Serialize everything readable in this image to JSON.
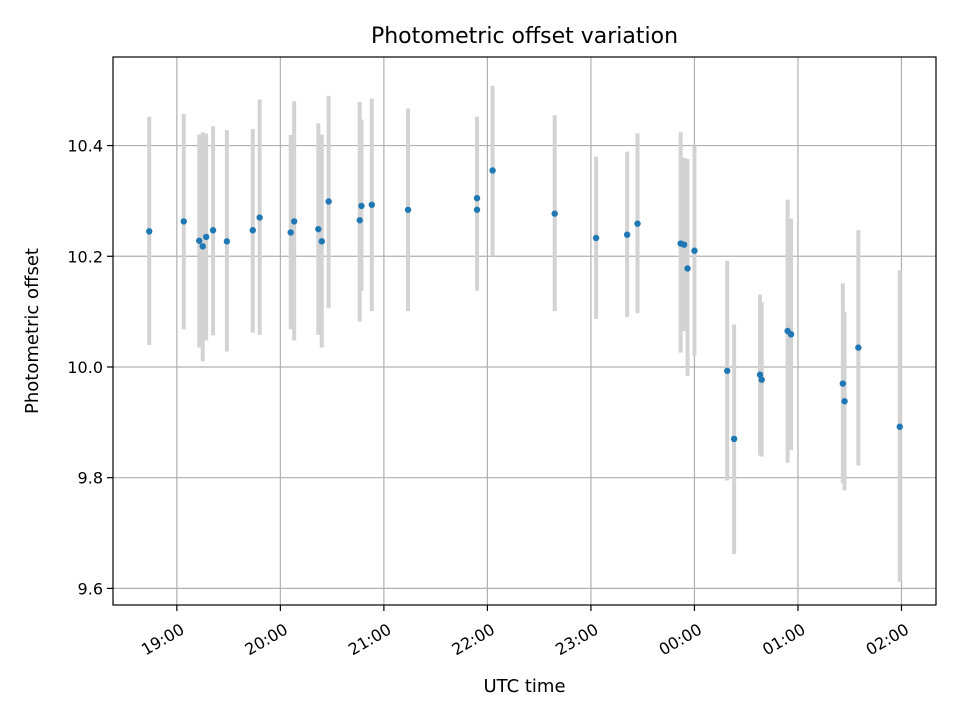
{
  "chart_data": {
    "type": "scatter",
    "title": "Photometric offset variation",
    "xlabel": "UTC time",
    "ylabel": "Photometric offset",
    "ylim": [
      9.57,
      10.56
    ],
    "xlim": [
      "18:23",
      "02:20"
    ],
    "x_axis_note": "times after midnight belong to the following day",
    "grid": true,
    "xticks": [
      "19:00",
      "20:00",
      "21:00",
      "22:00",
      "23:00",
      "00:00",
      "01:00",
      "02:00"
    ],
    "yticks": [
      9.6,
      9.8,
      10.0,
      10.2,
      10.4
    ],
    "ytick_labels": [
      "9.6",
      "9.8",
      "10.0",
      "10.2",
      "10.4"
    ],
    "point_color": "#1f77b4",
    "errorbar_color": "#d3d3d3",
    "points": [
      {
        "t": "18:44",
        "y": 10.245,
        "lo": 10.04,
        "hi": 10.452
      },
      {
        "t": "19:04",
        "y": 10.263,
        "lo": 10.068,
        "hi": 10.457
      },
      {
        "t": "19:13",
        "y": 10.228,
        "lo": 10.035,
        "hi": 10.42
      },
      {
        "t": "19:15",
        "y": 10.218,
        "lo": 10.01,
        "hi": 10.424
      },
      {
        "t": "19:17",
        "y": 10.235,
        "lo": 10.048,
        "hi": 10.422
      },
      {
        "t": "19:21",
        "y": 10.247,
        "lo": 10.057,
        "hi": 10.435
      },
      {
        "t": "19:29",
        "y": 10.227,
        "lo": 10.028,
        "hi": 10.428
      },
      {
        "t": "19:44",
        "y": 10.247,
        "lo": 10.062,
        "hi": 10.43
      },
      {
        "t": "19:48",
        "y": 10.27,
        "lo": 10.058,
        "hi": 10.483
      },
      {
        "t": "20:06",
        "y": 10.243,
        "lo": 10.068,
        "hi": 10.419
      },
      {
        "t": "20:08",
        "y": 10.263,
        "lo": 10.048,
        "hi": 10.48
      },
      {
        "t": "20:22",
        "y": 10.249,
        "lo": 10.058,
        "hi": 10.44
      },
      {
        "t": "20:24",
        "y": 10.227,
        "lo": 10.035,
        "hi": 10.42
      },
      {
        "t": "20:28",
        "y": 10.299,
        "lo": 10.106,
        "hi": 10.49
      },
      {
        "t": "20:46",
        "y": 10.265,
        "lo": 10.082,
        "hi": 10.479
      },
      {
        "t": "20:47",
        "y": 10.291,
        "lo": 10.137,
        "hi": 10.447
      },
      {
        "t": "20:53",
        "y": 10.293,
        "lo": 10.101,
        "hi": 10.485
      },
      {
        "t": "21:14",
        "y": 10.284,
        "lo": 10.101,
        "hi": 10.467
      },
      {
        "t": "21:54",
        "y": 10.305,
        "lo": 10.166,
        "hi": 10.452
      },
      {
        "t": "21:54",
        "y": 10.284,
        "lo": 10.138,
        "hi": 10.43
      },
      {
        "t": "22:03",
        "y": 10.355,
        "lo": 10.2,
        "hi": 10.508
      },
      {
        "t": "22:39",
        "y": 10.277,
        "lo": 10.101,
        "hi": 10.455
      },
      {
        "t": "23:03",
        "y": 10.233,
        "lo": 10.087,
        "hi": 10.38
      },
      {
        "t": "23:21",
        "y": 10.239,
        "lo": 10.09,
        "hi": 10.389
      },
      {
        "t": "23:27",
        "y": 10.259,
        "lo": 10.097,
        "hi": 10.422
      },
      {
        "t": "23:52",
        "y": 10.223,
        "lo": 10.026,
        "hi": 10.424
      },
      {
        "t": "23:54",
        "y": 10.221,
        "lo": 10.065,
        "hi": 10.378
      },
      {
        "t": "23:56",
        "y": 10.178,
        "lo": 9.984,
        "hi": 10.376
      },
      {
        "t": "00:00",
        "y": 10.21,
        "lo": 10.02,
        "hi": 10.4
      },
      {
        "t": "00:19",
        "y": 9.993,
        "lo": 9.795,
        "hi": 10.192
      },
      {
        "t": "00:23",
        "y": 9.87,
        "lo": 9.662,
        "hi": 10.077
      },
      {
        "t": "00:38",
        "y": 9.986,
        "lo": 9.84,
        "hi": 10.131
      },
      {
        "t": "00:39",
        "y": 9.977,
        "lo": 9.838,
        "hi": 10.117
      },
      {
        "t": "00:54",
        "y": 10.065,
        "lo": 9.827,
        "hi": 10.302
      },
      {
        "t": "00:56",
        "y": 10.059,
        "lo": 9.85,
        "hi": 10.268
      },
      {
        "t": "01:26",
        "y": 9.97,
        "lo": 9.79,
        "hi": 10.151
      },
      {
        "t": "01:27",
        "y": 9.938,
        "lo": 9.777,
        "hi": 10.1
      },
      {
        "t": "01:35",
        "y": 10.035,
        "lo": 9.822,
        "hi": 10.247
      },
      {
        "t": "01:59",
        "y": 9.892,
        "lo": 9.612,
        "hi": 10.175
      }
    ]
  }
}
